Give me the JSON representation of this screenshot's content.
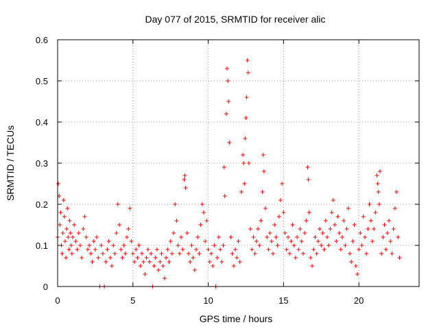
{
  "chart_data": {
    "type": "scatter",
    "title": "Day 077 of 2015, SRMTID for receiver alic",
    "xlabel": "GPS time / hours",
    "ylabel": "SRMTID / TECUs",
    "xlim": [
      0,
      24
    ],
    "ylim": [
      0,
      0.6
    ],
    "x_ticks": [
      0,
      5,
      10,
      15,
      20
    ],
    "x_tick_labels": [
      "0",
      "5",
      "10",
      "15",
      "20"
    ],
    "y_ticks": [
      0,
      0.1,
      0.2,
      0.3,
      0.4,
      0.5,
      0.6
    ],
    "y_tick_labels": [
      "0",
      "0.1",
      "0.2",
      "0.3",
      "0.4",
      "0.5",
      "0.6"
    ],
    "grid": true,
    "marker": "plus",
    "series": [
      {
        "name": "SRMTID",
        "color": "#ff0000",
        "points": [
          [
            0.0,
            0.12
          ],
          [
            0.05,
            0.25
          ],
          [
            0.1,
            0.22
          ],
          [
            0.15,
            0.15
          ],
          [
            0.2,
            0.18
          ],
          [
            0.25,
            0.1
          ],
          [
            0.3,
            0.08
          ],
          [
            0.35,
            0.13
          ],
          [
            0.4,
            0.21
          ],
          [
            0.45,
            0.17
          ],
          [
            0.5,
            0.11
          ],
          [
            0.55,
            0.07
          ],
          [
            0.6,
            0.14
          ],
          [
            0.65,
            0.19
          ],
          [
            0.7,
            0.12
          ],
          [
            0.75,
            0.09
          ],
          [
            0.8,
            0.16
          ],
          [
            0.85,
            0.13
          ],
          [
            0.9,
            0.1
          ],
          [
            0.95,
            0.08
          ],
          [
            1.0,
            0.12
          ],
          [
            1.1,
            0.15
          ],
          [
            1.2,
            0.11
          ],
          [
            1.3,
            0.09
          ],
          [
            1.4,
            0.13
          ],
          [
            1.5,
            0.1
          ],
          [
            1.6,
            0.07
          ],
          [
            1.7,
            0.14
          ],
          [
            1.8,
            0.17
          ],
          [
            1.9,
            0.12
          ],
          [
            2.0,
            0.09
          ],
          [
            2.1,
            0.1
          ],
          [
            2.2,
            0.08
          ],
          [
            2.3,
            0.06
          ],
          [
            2.4,
            0.11
          ],
          [
            2.5,
            0.09
          ],
          [
            2.6,
            0.12
          ],
          [
            2.7,
            0.07
          ],
          [
            2.8,
            0.0
          ],
          [
            2.9,
            0.1
          ],
          [
            3.0,
            0.08
          ],
          [
            3.1,
            0.0
          ],
          [
            3.2,
            0.06
          ],
          [
            3.3,
            0.09
          ],
          [
            3.4,
            0.11
          ],
          [
            3.5,
            0.07
          ],
          [
            3.6,
            0.05
          ],
          [
            3.7,
            0.1
          ],
          [
            3.8,
            0.08
          ],
          [
            3.9,
            0.13
          ],
          [
            4.0,
            0.2
          ],
          [
            4.1,
            0.15
          ],
          [
            4.2,
            0.09
          ],
          [
            4.3,
            0.07
          ],
          [
            4.4,
            0.1
          ],
          [
            4.5,
            0.08
          ],
          [
            4.6,
            0.12
          ],
          [
            4.7,
            0.14
          ],
          [
            4.8,
            0.19
          ],
          [
            4.9,
            0.11
          ],
          [
            5.0,
            0.08
          ],
          [
            5.1,
            0.06
          ],
          [
            5.2,
            0.09
          ],
          [
            5.3,
            0.07
          ],
          [
            5.4,
            0.1
          ],
          [
            5.5,
            0.05
          ],
          [
            5.6,
            0.08
          ],
          [
            5.7,
            0.06
          ],
          [
            5.8,
            0.03
          ],
          [
            5.9,
            0.07
          ],
          [
            6.0,
            0.09
          ],
          [
            6.1,
            0.06
          ],
          [
            6.2,
            0.08
          ],
          [
            6.3,
            0.0
          ],
          [
            6.4,
            0.05
          ],
          [
            6.5,
            0.07
          ],
          [
            6.6,
            0.09
          ],
          [
            6.7,
            0.04
          ],
          [
            6.8,
            0.06
          ],
          [
            6.9,
            0.08
          ],
          [
            7.0,
            0.05
          ],
          [
            7.1,
            0.02
          ],
          [
            7.2,
            0.07
          ],
          [
            7.3,
            0.09
          ],
          [
            7.4,
            0.06
          ],
          [
            7.5,
            0.11
          ],
          [
            7.6,
            0.08
          ],
          [
            7.7,
            0.13
          ],
          [
            7.8,
            0.2
          ],
          [
            7.9,
            0.16
          ],
          [
            8.0,
            0.1
          ],
          [
            8.1,
            0.08
          ],
          [
            8.2,
            0.12
          ],
          [
            8.3,
            0.09
          ],
          [
            8.4,
            0.26
          ],
          [
            8.45,
            0.27
          ],
          [
            8.5,
            0.24
          ],
          [
            8.6,
            0.13
          ],
          [
            8.7,
            0.08
          ],
          [
            8.8,
            0.06
          ],
          [
            8.9,
            0.1
          ],
          [
            9.0,
            0.07
          ],
          [
            9.1,
            0.04
          ],
          [
            9.2,
            0.09
          ],
          [
            9.3,
            0.12
          ],
          [
            9.4,
            0.08
          ],
          [
            9.5,
            0.15
          ],
          [
            9.6,
            0.2
          ],
          [
            9.7,
            0.18
          ],
          [
            9.8,
            0.11
          ],
          [
            9.9,
            0.16
          ],
          [
            10.0,
            0.09
          ],
          [
            10.1,
            0.06
          ],
          [
            10.2,
            0.08
          ],
          [
            10.3,
            0.05
          ],
          [
            10.4,
            0.1
          ],
          [
            10.5,
            0.0
          ],
          [
            10.6,
            0.07
          ],
          [
            10.7,
            0.12
          ],
          [
            10.8,
            0.09
          ],
          [
            10.9,
            0.06
          ],
          [
            11.0,
            0.1
          ],
          [
            11.05,
            0.29
          ],
          [
            11.1,
            0.22
          ],
          [
            11.2,
            0.42
          ],
          [
            11.25,
            0.53
          ],
          [
            11.3,
            0.5
          ],
          [
            11.35,
            0.45
          ],
          [
            11.4,
            0.35
          ],
          [
            11.5,
            0.12
          ],
          [
            11.6,
            0.08
          ],
          [
            11.7,
            0.05
          ],
          [
            11.8,
            0.09
          ],
          [
            11.9,
            0.07
          ],
          [
            12.0,
            0.11
          ],
          [
            12.1,
            0.06
          ],
          [
            12.2,
            0.23
          ],
          [
            12.3,
            0.32
          ],
          [
            12.35,
            0.3
          ],
          [
            12.4,
            0.25
          ],
          [
            12.45,
            0.36
          ],
          [
            12.5,
            0.41
          ],
          [
            12.55,
            0.46
          ],
          [
            12.6,
            0.55
          ],
          [
            12.65,
            0.52
          ],
          [
            12.7,
            0.3
          ],
          [
            12.8,
            0.14
          ],
          [
            12.9,
            0.09
          ],
          [
            13.0,
            0.12
          ],
          [
            13.1,
            0.08
          ],
          [
            13.2,
            0.11
          ],
          [
            13.3,
            0.14
          ],
          [
            13.4,
            0.1
          ],
          [
            13.5,
            0.16
          ],
          [
            13.6,
            0.23
          ],
          [
            13.65,
            0.32
          ],
          [
            13.7,
            0.28
          ],
          [
            13.8,
            0.19
          ],
          [
            13.9,
            0.12
          ],
          [
            14.0,
            0.09
          ],
          [
            14.1,
            0.13
          ],
          [
            14.2,
            0.11
          ],
          [
            14.3,
            0.08
          ],
          [
            14.4,
            0.15
          ],
          [
            14.5,
            0.12
          ],
          [
            14.6,
            0.1
          ],
          [
            14.7,
            0.17
          ],
          [
            14.8,
            0.21
          ],
          [
            14.9,
            0.25
          ],
          [
            15.0,
            0.18
          ],
          [
            15.1,
            0.13
          ],
          [
            15.2,
            0.09
          ],
          [
            15.3,
            0.12
          ],
          [
            15.4,
            0.08
          ],
          [
            15.5,
            0.11
          ],
          [
            15.6,
            0.15
          ],
          [
            15.7,
            0.1
          ],
          [
            15.8,
            0.07
          ],
          [
            15.9,
            0.12
          ],
          [
            16.0,
            0.09
          ],
          [
            16.1,
            0.14
          ],
          [
            16.2,
            0.11
          ],
          [
            16.3,
            0.08
          ],
          [
            16.4,
            0.13
          ],
          [
            16.5,
            0.16
          ],
          [
            16.6,
            0.29
          ],
          [
            16.65,
            0.26
          ],
          [
            16.7,
            0.18
          ],
          [
            16.8,
            0.07
          ],
          [
            16.9,
            0.05
          ],
          [
            17.0,
            0.09
          ],
          [
            17.1,
            0.12
          ],
          [
            17.2,
            0.08
          ],
          [
            17.3,
            0.11
          ],
          [
            17.4,
            0.14
          ],
          [
            17.5,
            0.1
          ],
          [
            17.6,
            0.13
          ],
          [
            17.7,
            0.09
          ],
          [
            17.8,
            0.16
          ],
          [
            17.9,
            0.12
          ],
          [
            18.0,
            0.1
          ],
          [
            18.1,
            0.14
          ],
          [
            18.2,
            0.18
          ],
          [
            18.3,
            0.21
          ],
          [
            18.4,
            0.15
          ],
          [
            18.5,
            0.11
          ],
          [
            18.6,
            0.17
          ],
          [
            18.7,
            0.13
          ],
          [
            18.8,
            0.09
          ],
          [
            18.9,
            0.12
          ],
          [
            19.0,
            0.16
          ],
          [
            19.1,
            0.1
          ],
          [
            19.2,
            0.14
          ],
          [
            19.3,
            0.19
          ],
          [
            19.4,
            0.08
          ],
          [
            19.5,
            0.06
          ],
          [
            19.6,
            0.11
          ],
          [
            19.7,
            0.15
          ],
          [
            19.8,
            0.05
          ],
          [
            19.9,
            0.03
          ],
          [
            20.0,
            0.09
          ],
          [
            20.1,
            0.13
          ],
          [
            20.2,
            0.1
          ],
          [
            20.3,
            0.17
          ],
          [
            20.4,
            0.12
          ],
          [
            20.5,
            0.08
          ],
          [
            20.6,
            0.14
          ],
          [
            20.7,
            0.2
          ],
          [
            20.8,
            0.16
          ],
          [
            20.9,
            0.11
          ],
          [
            21.0,
            0.14
          ],
          [
            21.1,
            0.18
          ],
          [
            21.2,
            0.27
          ],
          [
            21.25,
            0.25
          ],
          [
            21.3,
            0.23
          ],
          [
            21.35,
            0.2
          ],
          [
            21.4,
            0.28
          ],
          [
            21.5,
            0.08
          ],
          [
            21.6,
            0.12
          ],
          [
            21.7,
            0.15
          ],
          [
            21.8,
            0.09
          ],
          [
            21.9,
            0.13
          ],
          [
            22.0,
            0.16
          ],
          [
            22.1,
            0.11
          ],
          [
            22.2,
            0.08
          ],
          [
            22.3,
            0.14
          ],
          [
            22.4,
            0.19
          ],
          [
            22.5,
            0.23
          ],
          [
            22.6,
            0.12
          ],
          [
            22.7,
            0.07
          ]
        ]
      }
    ]
  }
}
